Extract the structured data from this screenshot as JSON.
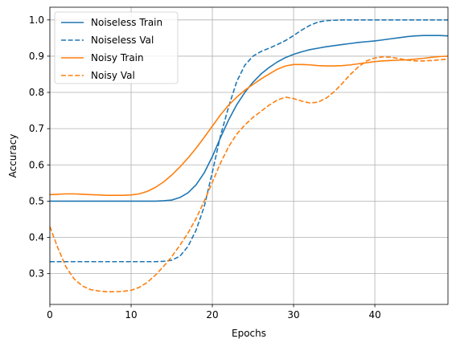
{
  "chart_data": {
    "type": "line",
    "xlabel": "Epochs",
    "ylabel": "Accuracy",
    "xlim": [
      0,
      49
    ],
    "ylim": [
      0.215,
      1.035
    ],
    "xticks": [
      0,
      10,
      20,
      30,
      40
    ],
    "yticks": [
      0.3,
      0.4,
      0.5,
      0.6,
      0.7,
      0.8,
      0.9,
      1.0
    ],
    "xtick_labels": [
      "0",
      "10",
      "20",
      "30",
      "40"
    ],
    "ytick_labels": [
      "0.3",
      "0.4",
      "0.5",
      "0.6",
      "0.7",
      "0.8",
      "0.9",
      "1.0"
    ],
    "grid": true,
    "legend_position": "top-left",
    "x": [
      0,
      1,
      2,
      3,
      4,
      5,
      6,
      7,
      8,
      9,
      10,
      11,
      12,
      13,
      14,
      15,
      16,
      17,
      18,
      19,
      20,
      21,
      22,
      23,
      24,
      25,
      26,
      27,
      28,
      29,
      30,
      31,
      32,
      33,
      34,
      35,
      36,
      37,
      38,
      39,
      40,
      41,
      42,
      43,
      44,
      45,
      46,
      47,
      48,
      49
    ],
    "series": [
      {
        "name": "Noiseless Train",
        "color": "#1f77b4",
        "dash": "solid",
        "values": [
          0.5,
          0.5,
          0.5,
          0.5,
          0.5,
          0.5,
          0.5,
          0.5,
          0.5,
          0.5,
          0.5,
          0.5,
          0.5,
          0.5,
          0.501,
          0.503,
          0.51,
          0.523,
          0.545,
          0.578,
          0.623,
          0.675,
          0.724,
          0.766,
          0.8,
          0.828,
          0.851,
          0.869,
          0.884,
          0.896,
          0.905,
          0.912,
          0.918,
          0.922,
          0.926,
          0.929,
          0.932,
          0.935,
          0.938,
          0.94,
          0.942,
          0.945,
          0.948,
          0.951,
          0.954,
          0.956,
          0.957,
          0.957,
          0.957,
          0.956
        ]
      },
      {
        "name": "Noiseless Val",
        "color": "#1f77b4",
        "dash": "dashed",
        "values": [
          0.333,
          0.333,
          0.333,
          0.333,
          0.333,
          0.333,
          0.333,
          0.333,
          0.333,
          0.333,
          0.333,
          0.333,
          0.333,
          0.333,
          0.334,
          0.337,
          0.348,
          0.375,
          0.42,
          0.485,
          0.58,
          0.68,
          0.76,
          0.83,
          0.875,
          0.9,
          0.913,
          0.922,
          0.932,
          0.943,
          0.957,
          0.972,
          0.985,
          0.994,
          0.998,
          0.999,
          1.0,
          1.0,
          1.0,
          1.0,
          1.0,
          1.0,
          1.0,
          1.0,
          1.0,
          1.0,
          1.0,
          1.0,
          1.0,
          1.0
        ]
      },
      {
        "name": "Noisy Train",
        "color": "#ff7f0e",
        "dash": "solid",
        "values": [
          0.518,
          0.519,
          0.52,
          0.52,
          0.519,
          0.518,
          0.517,
          0.516,
          0.516,
          0.516,
          0.517,
          0.52,
          0.527,
          0.538,
          0.553,
          0.572,
          0.594,
          0.619,
          0.646,
          0.676,
          0.707,
          0.738,
          0.765,
          0.787,
          0.806,
          0.822,
          0.837,
          0.851,
          0.864,
          0.873,
          0.877,
          0.877,
          0.876,
          0.874,
          0.873,
          0.873,
          0.874,
          0.876,
          0.879,
          0.882,
          0.885,
          0.887,
          0.888,
          0.889,
          0.89,
          0.892,
          0.894,
          0.897,
          0.899,
          0.9
        ]
      },
      {
        "name": "Noisy Val",
        "color": "#ff7f0e",
        "dash": "dashed",
        "values": [
          0.43,
          0.37,
          0.318,
          0.285,
          0.266,
          0.256,
          0.252,
          0.25,
          0.25,
          0.251,
          0.254,
          0.262,
          0.276,
          0.296,
          0.32,
          0.347,
          0.378,
          0.412,
          0.452,
          0.5,
          0.552,
          0.605,
          0.65,
          0.685,
          0.71,
          0.731,
          0.748,
          0.765,
          0.779,
          0.787,
          0.783,
          0.776,
          0.771,
          0.773,
          0.784,
          0.802,
          0.825,
          0.85,
          0.871,
          0.887,
          0.895,
          0.898,
          0.897,
          0.893,
          0.889,
          0.887,
          0.887,
          0.888,
          0.89,
          0.892
        ]
      }
    ]
  }
}
